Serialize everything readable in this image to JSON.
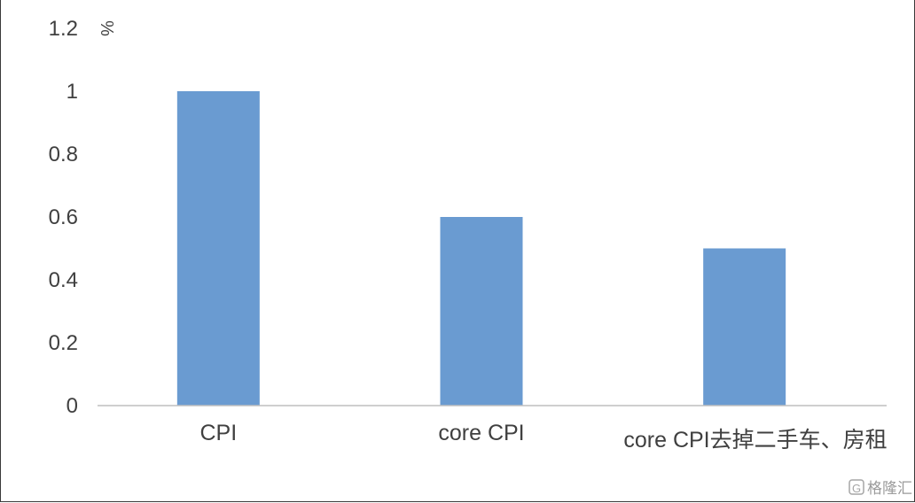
{
  "chart_data": {
    "type": "bar",
    "categories": [
      "CPI",
      "core CPI",
      "core CPI去掉二手车、房租"
    ],
    "values": [
      1.0,
      0.6,
      0.5
    ],
    "title": "",
    "xlabel": "",
    "ylabel": "",
    "unit": "%",
    "ylim": [
      0,
      1.2
    ],
    "yticks": [
      "0",
      "0.2",
      "0.4",
      "0.6",
      "0.8",
      "1",
      "1.2"
    ],
    "grid": false,
    "legend": "none",
    "bar_color": "#6a9bd1"
  },
  "watermark": {
    "text": "格隆汇",
    "icon": "g-logo-icon"
  }
}
